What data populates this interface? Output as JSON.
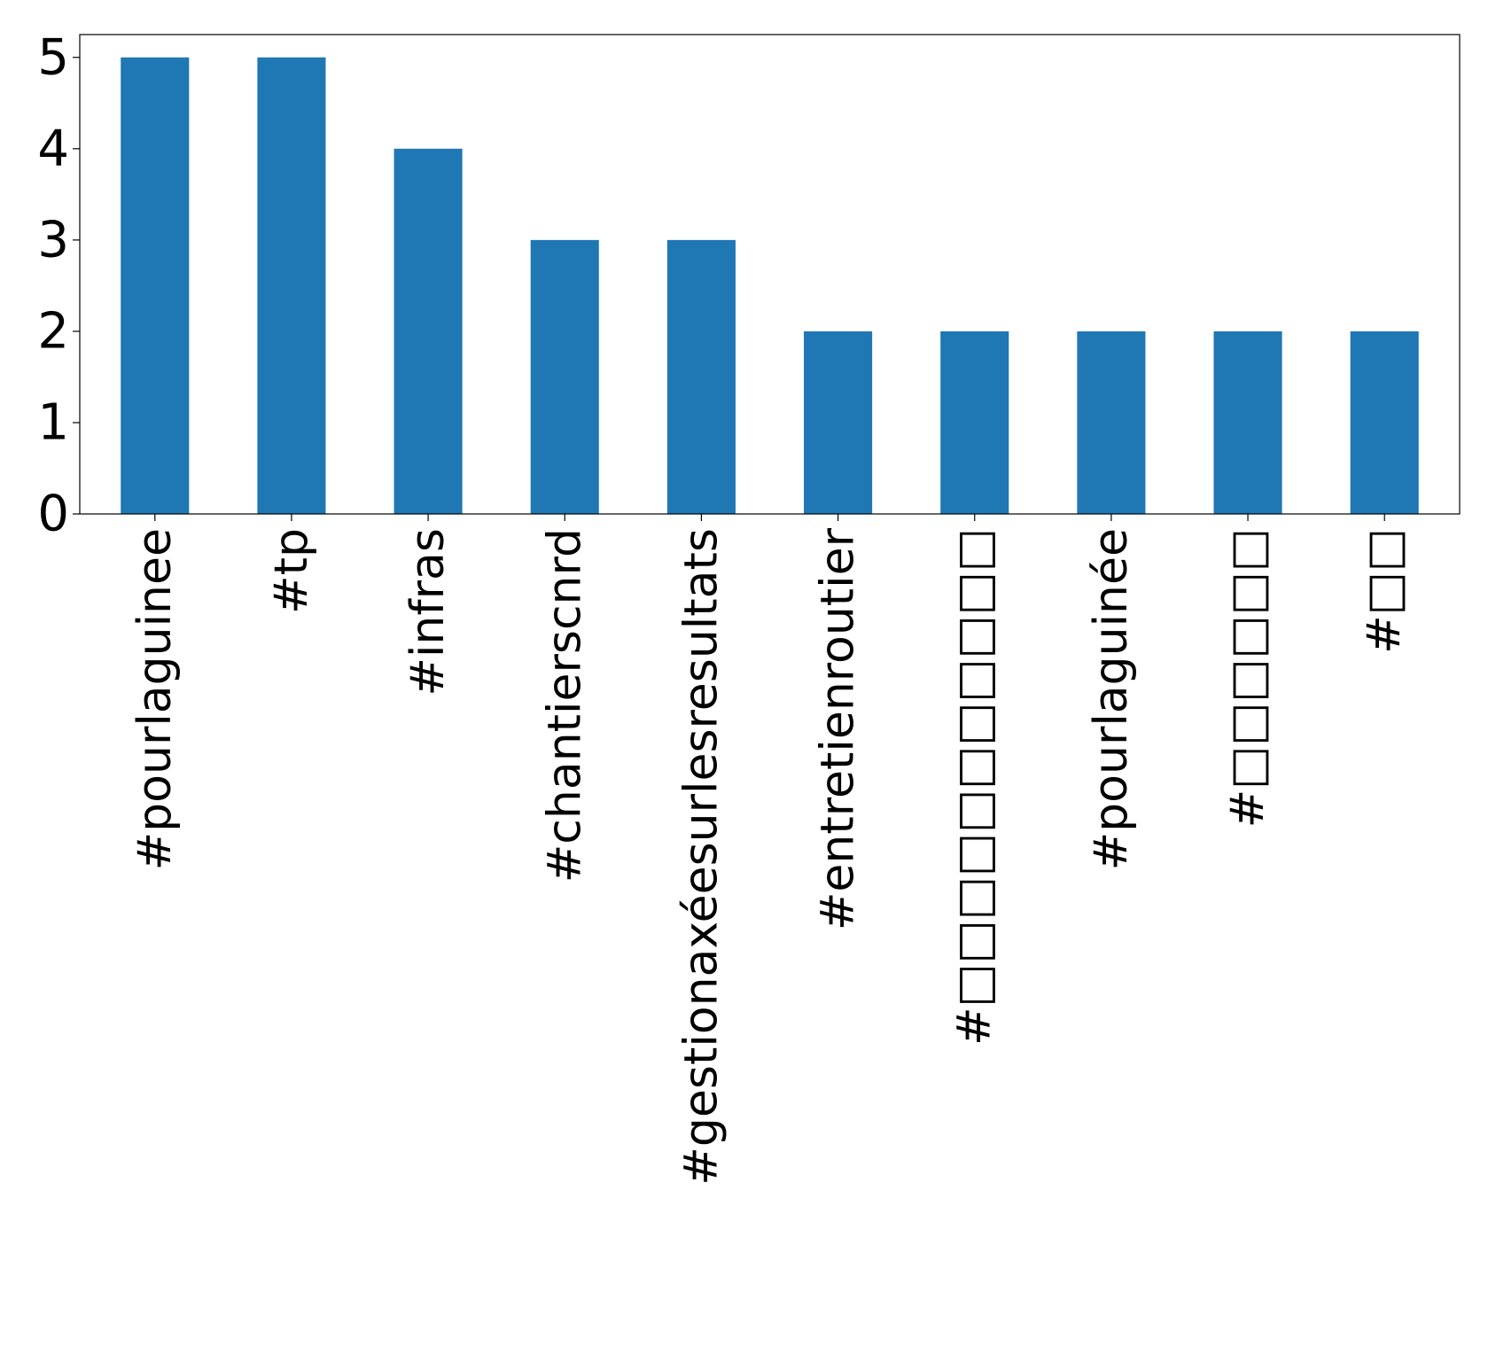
{
  "chart_data": {
    "type": "bar",
    "categories": [
      "#pourlaguinee",
      "#tp",
      "#infras",
      "#chantierscnrd",
      "#gestionaxéesurlesresultats",
      "#entretienroutier",
      "#□□□□□□□□□□□",
      "#pourlaguinée",
      "#□□□□□□",
      "#□□"
    ],
    "values": [
      5,
      5,
      4,
      3,
      3,
      2,
      2,
      2,
      2,
      2
    ],
    "yticks": [
      "0",
      "1",
      "2",
      "3",
      "4",
      "5"
    ],
    "ylim": [
      0,
      5.25
    ],
    "title": "",
    "xlabel": "",
    "ylabel": "",
    "grid": false,
    "bar_color": "#1f77b4"
  }
}
